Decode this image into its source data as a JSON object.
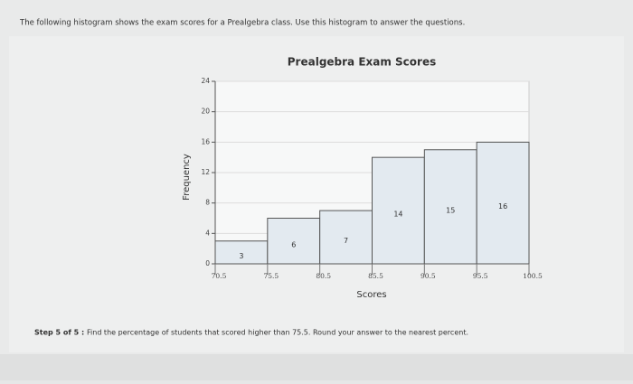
{
  "instruction": "The following histogram shows the exam scores for a Prealgebra class. Use this histogram to answer the questions.",
  "chart_data": {
    "type": "histogram",
    "title": "Prealgebra Exam Scores",
    "x_label": "Scores",
    "y_label": "Frequency",
    "bins": [
      70.5,
      75.5,
      80.5,
      85.5,
      90.5,
      95.5,
      100.5
    ],
    "values": [
      3,
      6,
      7,
      14,
      15,
      16
    ],
    "xlim": [
      70.5,
      100.5
    ],
    "ylim": [
      0,
      24
    ],
    "yticks": [
      0,
      4,
      8,
      12,
      16,
      20,
      24
    ],
    "color": "#e3eaf0",
    "grid": true
  },
  "step_label": "Step 5 of 5 :",
  "question": "Find the percentage of students that scored higher than 75.5. Round your answer to the nearest percent."
}
